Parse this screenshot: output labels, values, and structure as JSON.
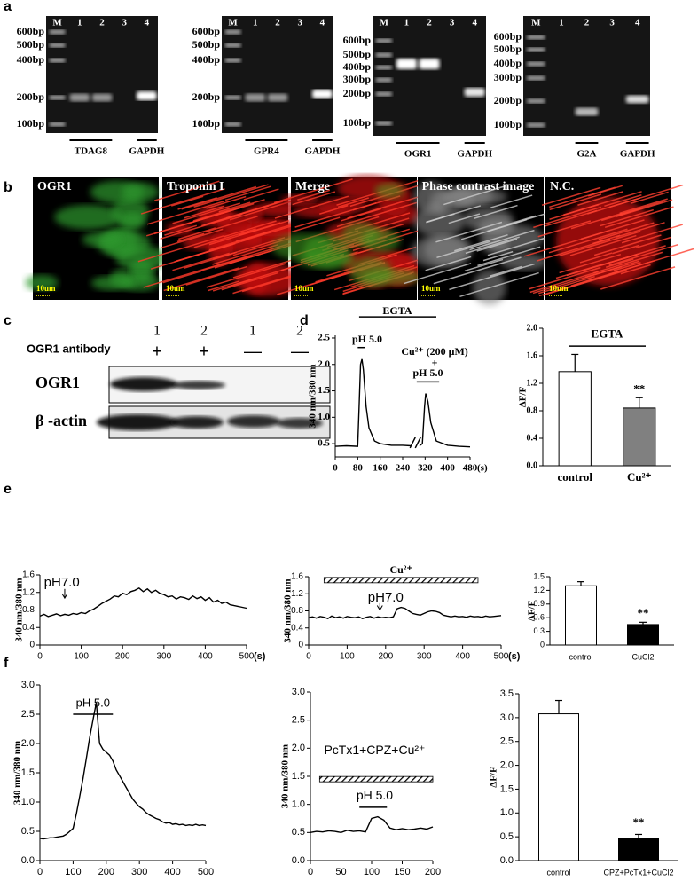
{
  "panel_labels": [
    "a",
    "b",
    "c",
    "d",
    "e",
    "f"
  ],
  "a": {
    "gels": [
      {
        "lanes": [
          "M",
          "1",
          "2",
          "3",
          "4"
        ],
        "markers": [
          "600bp",
          "500bp",
          "400bp",
          "200bp",
          "100bp"
        ],
        "genes": [
          "TDAG8",
          "GAPDH"
        ]
      },
      {
        "lanes": [
          "M",
          "1",
          "2",
          "3",
          "4"
        ],
        "markers": [
          "600bp",
          "500bp",
          "400bp",
          "200bp",
          "100bp"
        ],
        "genes": [
          "GPR4",
          "GAPDH"
        ]
      },
      {
        "lanes": [
          "M",
          "1",
          "2",
          "3",
          "4"
        ],
        "markers": [
          "600bp",
          "500bp",
          "400bp",
          "300bp",
          "200bp",
          "100bp"
        ],
        "genes": [
          "OGR1",
          "GAPDH"
        ]
      },
      {
        "lanes": [
          "M",
          "1",
          "2",
          "3",
          "4"
        ],
        "markers": [
          "600bp",
          "500bp",
          "400bp",
          "300bp",
          "200bp",
          "100bp"
        ],
        "genes": [
          "G2A",
          "GAPDH"
        ]
      }
    ]
  },
  "b": {
    "images": [
      "OGR1",
      "Troponin I",
      "Merge",
      "Phase contrast image",
      "N.C."
    ],
    "scale": "10um"
  },
  "c": {
    "lanes": [
      "1",
      "2",
      "1",
      "2"
    ],
    "antibody": "OGR1 antibody",
    "signs": [
      "+",
      "+",
      "—",
      "—"
    ],
    "rows": [
      "OGR1",
      "β -actin"
    ]
  },
  "chart_data": [
    {
      "type": "line",
      "ylabel": "340 nm/380 nm",
      "xlabel": "(s)",
      "color": "#000000",
      "x": [
        0,
        40,
        80,
        85,
        90,
        95,
        100,
        110,
        120,
        140,
        160,
        200,
        240,
        270,
        285,
        300,
        310,
        318,
        322,
        330,
        340,
        360,
        400,
        440,
        480
      ],
      "values": [
        0.45,
        0.46,
        0.45,
        1.2,
        2.0,
        2.1,
        1.9,
        1.2,
        0.8,
        0.55,
        0.5,
        0.47,
        0.47,
        0.46,
        null,
        0.46,
        0.5,
        1.2,
        1.45,
        1.3,
        0.9,
        0.55,
        0.47,
        0.45,
        0.44
      ],
      "xlim": [
        0,
        480
      ],
      "xticks": [
        0,
        80,
        160,
        240,
        320,
        400,
        480
      ],
      "ylim": [
        0.25,
        2.55
      ],
      "yticks": [
        0.5,
        {
          "value": 1,
          "label": "1.0"
        },
        1.5,
        {
          "value": 2,
          "label": "2.0"
        },
        2.5
      ],
      "annotations": [
        "EGTA",
        "pH 5.0",
        "Cu²⁺ (200 μM)",
        "+",
        "pH 5.0"
      ]
    },
    {
      "type": "bar",
      "ylabel": "ΔF/F",
      "categories": [
        "control",
        "Cu²⁺"
      ],
      "values": [
        1.37,
        0.84
      ],
      "errors": [
        0.25,
        0.15
      ],
      "colors": [
        "#ffffff",
        "#808080"
      ],
      "ylim": [
        0,
        2
      ],
      "yticks": [
        {
          "value": 0,
          "label": "0.0"
        },
        0.4,
        0.8,
        1.2,
        1.6,
        {
          "value": 2,
          "label": "2.0"
        }
      ],
      "annotations": [
        "EGTA",
        "**"
      ]
    },
    {
      "type": "line",
      "ylabel": "340 nm/380 nm",
      "xlabel": "(s)",
      "color": "#000000",
      "x": [
        0,
        10,
        20,
        30,
        40,
        50,
        60,
        70,
        80,
        90,
        100,
        110,
        120,
        130,
        140,
        150,
        160,
        170,
        180,
        190,
        200,
        210,
        220,
        230,
        240,
        250,
        260,
        270,
        280,
        290,
        300,
        310,
        320,
        330,
        340,
        350,
        360,
        370,
        380,
        390,
        400,
        410,
        420,
        430,
        440,
        450,
        460,
        470,
        480,
        490,
        500
      ],
      "values": [
        0.66,
        0.7,
        0.65,
        0.68,
        0.71,
        0.67,
        0.7,
        0.68,
        0.72,
        0.7,
        0.74,
        0.72,
        0.78,
        0.82,
        0.88,
        0.95,
        1.0,
        1.05,
        1.12,
        1.1,
        1.18,
        1.15,
        1.22,
        1.25,
        1.3,
        1.22,
        1.28,
        1.2,
        1.25,
        1.18,
        1.15,
        1.1,
        1.12,
        1.05,
        1.1,
        1.08,
        1.04,
        1.12,
        1.06,
        1.1,
        1.02,
        1.08,
        0.98,
        1.02,
        0.95,
        0.98,
        0.92,
        0.9,
        0.88,
        0.86,
        0.84
      ],
      "xlim": [
        0,
        500
      ],
      "xticks": [
        0,
        100,
        200,
        300,
        400,
        500
      ],
      "ylim": [
        0,
        1.6
      ],
      "yticks": [
        0,
        0.4,
        0.8,
        1.2,
        1.6
      ],
      "annotations": [
        "pH7.0"
      ]
    },
    {
      "type": "line",
      "ylabel": "340 nm/380 nm",
      "xlabel": "(s)",
      "color": "#000000",
      "x": [
        0,
        10,
        20,
        30,
        40,
        50,
        60,
        70,
        80,
        90,
        100,
        110,
        120,
        130,
        140,
        150,
        160,
        170,
        180,
        190,
        200,
        210,
        220,
        230,
        240,
        250,
        260,
        270,
        280,
        290,
        300,
        310,
        320,
        330,
        340,
        350,
        360,
        370,
        380,
        390,
        400,
        410,
        420,
        430,
        440,
        450,
        460,
        470,
        480,
        490,
        500
      ],
      "values": [
        0.64,
        0.66,
        0.63,
        0.67,
        0.65,
        0.62,
        0.68,
        0.64,
        0.66,
        0.63,
        0.67,
        0.65,
        0.64,
        0.66,
        0.62,
        0.65,
        0.67,
        0.63,
        0.66,
        0.64,
        0.65,
        0.64,
        0.66,
        0.85,
        0.88,
        0.86,
        0.8,
        0.74,
        0.72,
        0.7,
        0.74,
        0.78,
        0.8,
        0.79,
        0.76,
        0.7,
        0.68,
        0.66,
        0.68,
        0.66,
        0.67,
        0.65,
        0.68,
        0.66,
        0.67,
        0.65,
        0.68,
        0.66,
        0.67,
        0.68,
        0.69
      ],
      "xlim": [
        0,
        500
      ],
      "xticks": [
        0,
        100,
        200,
        300,
        400,
        500
      ],
      "ylim": [
        0,
        1.6
      ],
      "yticks": [
        0,
        0.4,
        0.8,
        1.2,
        1.6
      ],
      "annotations": [
        "Cu²⁺",
        "pH7.0"
      ]
    },
    {
      "type": "bar",
      "ylabel": "ΔF/F",
      "categories": [
        "control",
        "CuCl2"
      ],
      "values": [
        1.3,
        0.45
      ],
      "errors": [
        0.09,
        0.05
      ],
      "colors": [
        "#ffffff",
        "#000000"
      ],
      "ylim": [
        0,
        1.5
      ],
      "yticks": [
        0,
        0.3,
        0.6,
        0.9,
        1.2,
        1.5
      ],
      "annotations": [
        "**"
      ]
    },
    {
      "type": "line",
      "ylabel": "340 nm/380 nm",
      "color": "#000000",
      "x": [
        0,
        10,
        20,
        30,
        40,
        50,
        60,
        70,
        80,
        90,
        100,
        110,
        120,
        130,
        140,
        150,
        160,
        170,
        180,
        190,
        200,
        210,
        220,
        230,
        240,
        250,
        260,
        270,
        280,
        290,
        300,
        310,
        320,
        330,
        340,
        350,
        360,
        370,
        380,
        390,
        400,
        410,
        420,
        430,
        440,
        450,
        460,
        470,
        480,
        490,
        500
      ],
      "values": [
        0.38,
        0.37,
        0.38,
        0.39,
        0.39,
        0.4,
        0.41,
        0.42,
        0.45,
        0.5,
        0.55,
        0.8,
        1.1,
        1.4,
        1.75,
        2.1,
        2.4,
        2.7,
        2.0,
        1.9,
        1.85,
        1.8,
        1.7,
        1.55,
        1.45,
        1.35,
        1.25,
        1.15,
        1.05,
        0.98,
        0.92,
        0.88,
        0.82,
        0.78,
        0.75,
        0.72,
        0.7,
        0.66,
        0.64,
        0.65,
        0.62,
        0.63,
        0.61,
        0.62,
        0.6,
        0.61,
        0.6,
        0.62,
        0.6,
        0.61,
        0.6
      ],
      "xlim": [
        0,
        500
      ],
      "xticks": [
        0,
        100,
        200,
        300,
        400,
        500
      ],
      "ylim": [
        0,
        3
      ],
      "yticks": [
        {
          "value": 0,
          "label": "0.0"
        },
        0.5,
        {
          "value": 1,
          "label": "1.0"
        },
        1.5,
        {
          "value": 2,
          "label": "2.0"
        },
        2.5,
        {
          "value": 3,
          "label": "3.0"
        }
      ],
      "annotations": [
        "pH 5.0"
      ]
    },
    {
      "type": "line",
      "ylabel": "340 nm/380 nm",
      "color": "#000000",
      "x": [
        0,
        10,
        20,
        30,
        40,
        50,
        60,
        70,
        80,
        90,
        100,
        110,
        120,
        130,
        140,
        150,
        160,
        170,
        180,
        190,
        200
      ],
      "values": [
        0.5,
        0.52,
        0.51,
        0.53,
        0.52,
        0.5,
        0.54,
        0.52,
        0.53,
        0.51,
        0.75,
        0.78,
        0.72,
        0.58,
        0.55,
        0.57,
        0.55,
        0.56,
        0.58,
        0.56,
        0.6
      ],
      "xlim": [
        0,
        200
      ],
      "xticks": [
        0,
        50,
        100,
        150,
        200
      ],
      "ylim": [
        0,
        3
      ],
      "yticks": [
        {
          "value": 0,
          "label": "0.0"
        },
        0.5,
        {
          "value": 1,
          "label": "1.0"
        },
        1.5,
        {
          "value": 2,
          "label": "2.0"
        },
        2.5,
        {
          "value": 3,
          "label": "3.0"
        }
      ],
      "annotations": [
        "PcTx1+CPZ+Cu²⁺",
        "pH 5.0"
      ]
    },
    {
      "type": "bar",
      "ylabel": "ΔF/F",
      "categories": [
        "control",
        "CPZ+PcTx1+CuCl2"
      ],
      "values": [
        3.08,
        0.47
      ],
      "errors": [
        0.28,
        0.08
      ],
      "colors": [
        "#ffffff",
        "#000000"
      ],
      "ylim": [
        0,
        3.5
      ],
      "yticks": [
        {
          "value": 0,
          "label": "0.0"
        },
        0.5,
        {
          "value": 1,
          "label": "1.0"
        },
        1.5,
        {
          "value": 2,
          "label": "2.0"
        },
        2.5,
        {
          "value": 3,
          "label": "3.0"
        },
        3.5
      ],
      "annotations": [
        "**"
      ]
    }
  ]
}
